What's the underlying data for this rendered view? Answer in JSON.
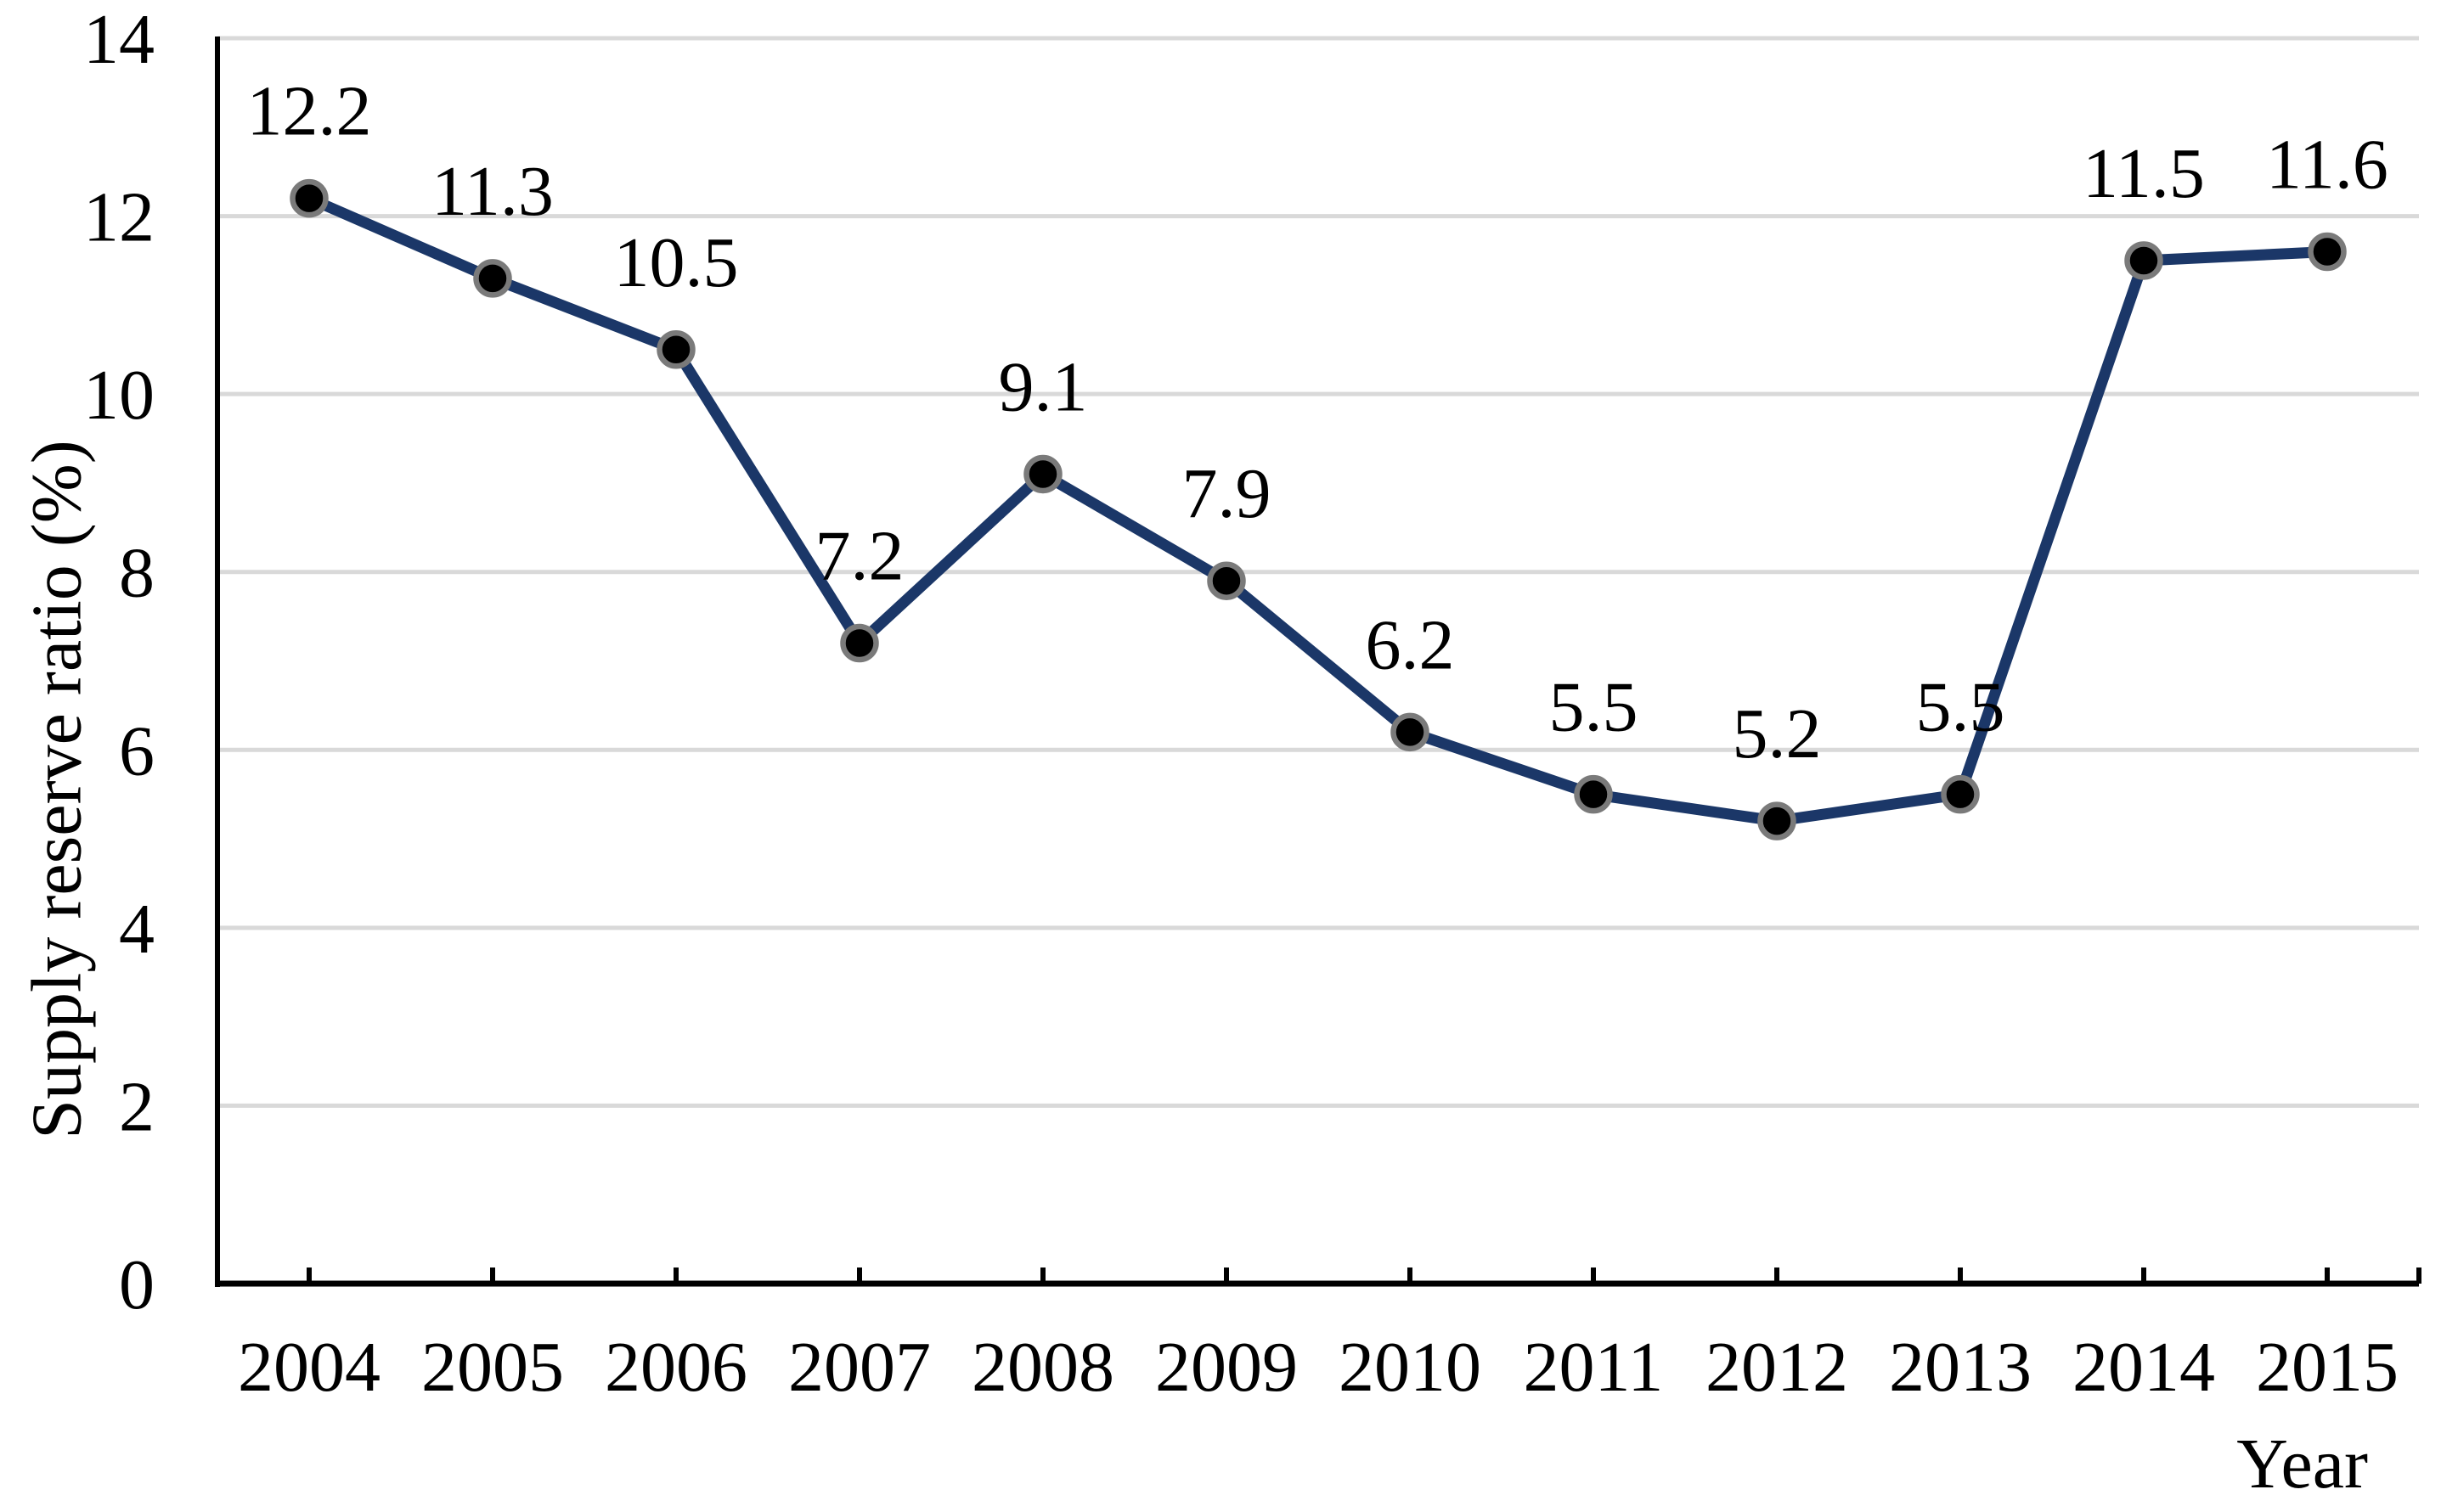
{
  "chart_data": {
    "type": "line",
    "categories": [
      "2004",
      "2005",
      "2006",
      "2007",
      "2008",
      "2009",
      "2010",
      "2011",
      "2012",
      "2013",
      "2014",
      "2015"
    ],
    "values": [
      12.2,
      11.3,
      10.5,
      7.2,
      9.1,
      7.9,
      6.2,
      5.5,
      5.2,
      5.5,
      11.5,
      11.6
    ],
    "data_labels": [
      "12.2",
      "11.3",
      "10.5",
      "7.2",
      "9.1",
      "7.9",
      "6.2",
      "5.5",
      "5.2",
      "5.5",
      "11.5",
      "11.6"
    ],
    "title": "",
    "xlabel": "Year",
    "ylabel": "Supply reserve ratio (%)",
    "ylim": [
      0,
      14
    ],
    "yticks": [
      0,
      2,
      4,
      6,
      8,
      10,
      12,
      14
    ],
    "ytick_labels": [
      "0",
      "2",
      "4",
      "6",
      "8",
      "10",
      "12",
      "14"
    ],
    "grid": true,
    "legend": "none",
    "colors": {
      "line": "#1B3768",
      "marker_fill": "#000000",
      "marker_stroke": "#7A7A7A",
      "gridline": "#D9D9D9",
      "axis": "#000000",
      "text": "#000000",
      "background": "#FFFFFF"
    }
  }
}
